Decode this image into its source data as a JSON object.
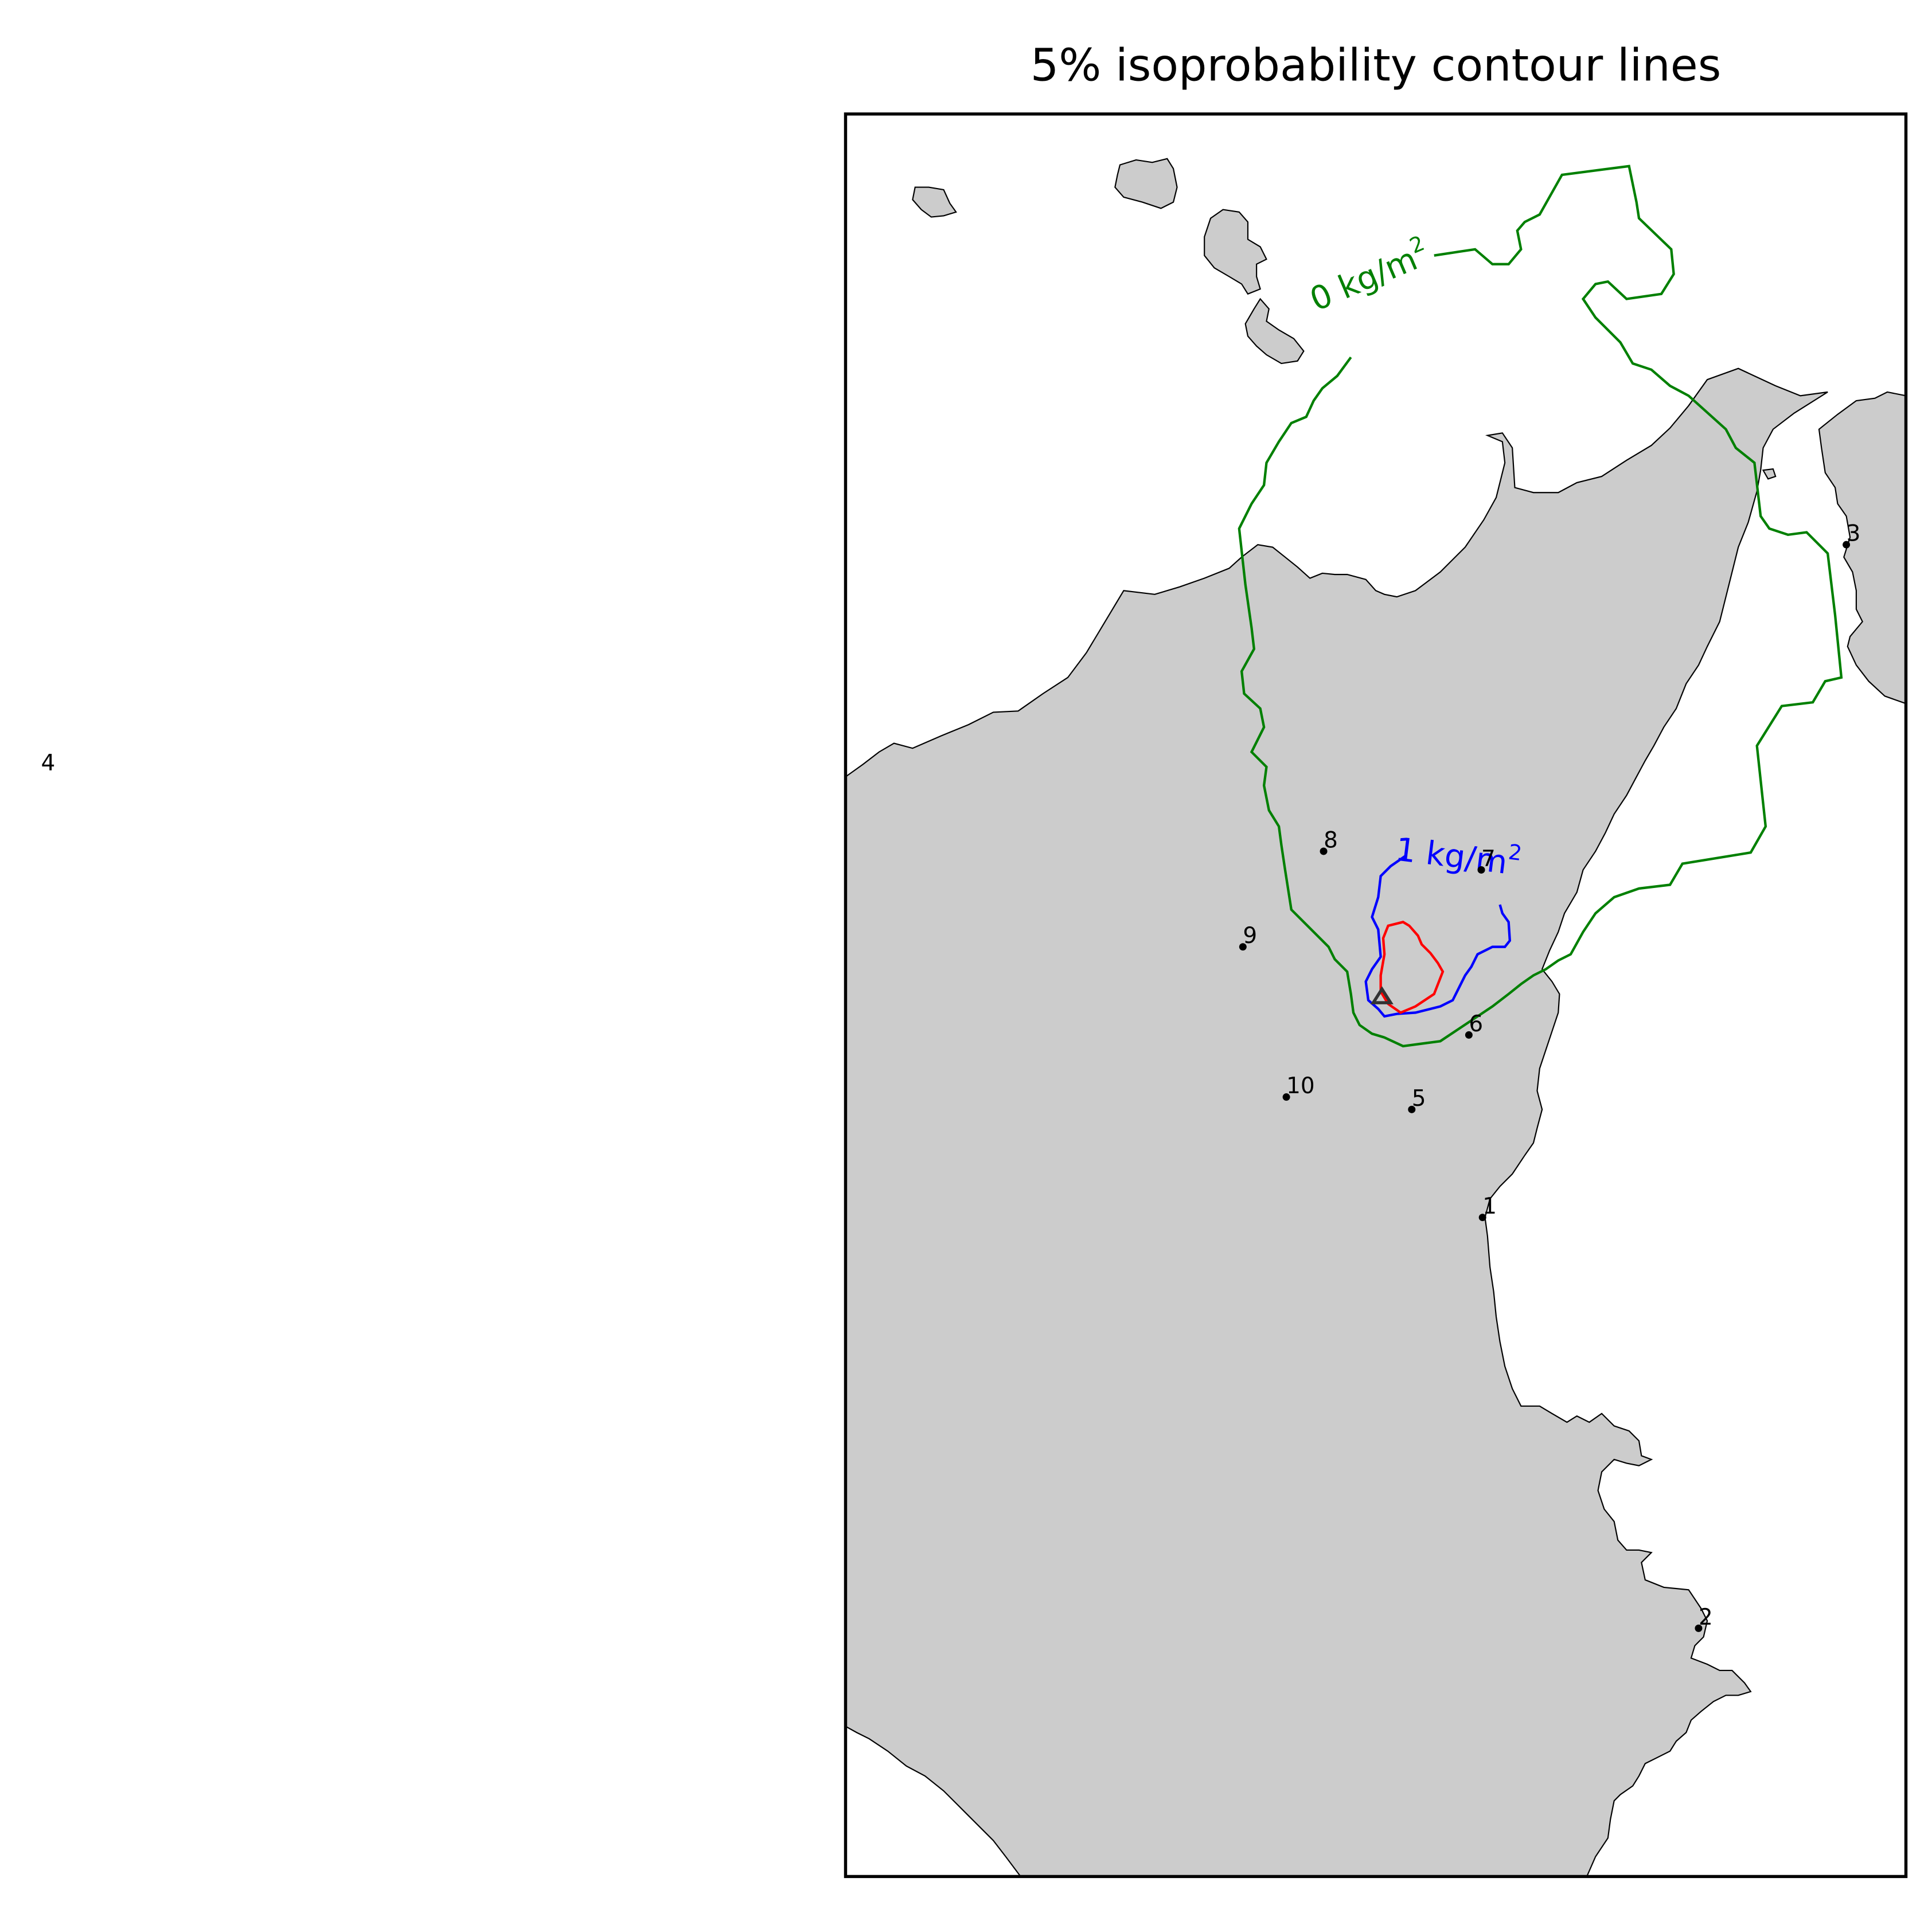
{
  "title": "5% isoprobability contour lines",
  "colors": {
    "land": "#cccccc",
    "coastline": "#000000",
    "contour_0": "#008000",
    "contour_1": "#0000ff",
    "contour_high": "#ff0000",
    "frame": "#000000",
    "vent": "#333333"
  },
  "contour_labels": {
    "green": {
      "value": "0 kg/m",
      "exp": "2"
    },
    "blue": {
      "value": "1 kg/m",
      "exp": "2"
    }
  },
  "sites": [
    {
      "label": "1"
    },
    {
      "label": "2"
    },
    {
      "label": "3"
    },
    {
      "label": "4"
    },
    {
      "label": "5"
    },
    {
      "label": "6"
    },
    {
      "label": "7"
    },
    {
      "label": "8"
    },
    {
      "label": "9"
    },
    {
      "label": "10"
    }
  ],
  "icons": {
    "vent": "triangle-vent-icon",
    "site": "dot-marker-icon"
  }
}
